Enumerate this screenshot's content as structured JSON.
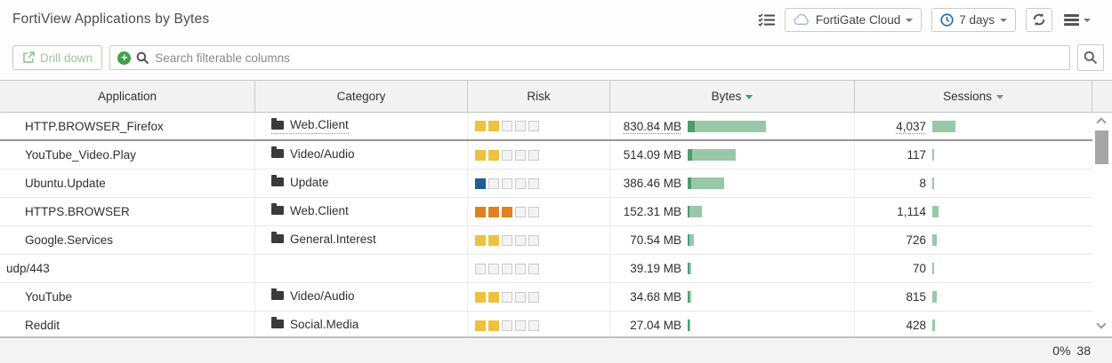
{
  "header": {
    "title": "FortiView Applications by Bytes",
    "device_dropdown": "FortiGate Cloud",
    "time_dropdown": "7 days"
  },
  "toolbar": {
    "drill_down_label": "Drill down",
    "search_placeholder": "Search filterable columns"
  },
  "table": {
    "columns": [
      "Application",
      "Category",
      "Risk",
      "Bytes",
      "Sessions"
    ],
    "sort_column": "Bytes",
    "sort_direction": "desc",
    "risk_level_colors": {
      "1": "#1e5d96",
      "2": "#f0c13c",
      "3": "#e0811f"
    },
    "rows": [
      {
        "application": "HTTP.BROWSER_Firefox",
        "category": "Web.Client",
        "risk": 2,
        "bytes": "830.84 MB",
        "bytes_mb": 830.84,
        "sessions": "4,037",
        "sessions_count": 4037,
        "selected": true
      },
      {
        "application": "YouTube_Video.Play",
        "category": "Video/Audio",
        "risk": 2,
        "bytes": "514.09 MB",
        "bytes_mb": 514.09,
        "sessions": "117",
        "sessions_count": 117
      },
      {
        "application": "Ubuntu.Update",
        "category": "Update",
        "risk": 1,
        "bytes": "386.46 MB",
        "bytes_mb": 386.46,
        "sessions": "8",
        "sessions_count": 8
      },
      {
        "application": "HTTPS.BROWSER",
        "category": "Web.Client",
        "risk": 3,
        "bytes": "152.31 MB",
        "bytes_mb": 152.31,
        "sessions": "1,114",
        "sessions_count": 1114
      },
      {
        "application": "Google.Services",
        "category": "General.Interest",
        "risk": 2,
        "bytes": "70.54 MB",
        "bytes_mb": 70.54,
        "sessions": "726",
        "sessions_count": 726
      },
      {
        "application": "udp/443",
        "category": "",
        "risk": 0,
        "bytes": "39.19 MB",
        "bytes_mb": 39.19,
        "sessions": "70",
        "sessions_count": 70,
        "raw": true
      },
      {
        "application": "YouTube",
        "category": "Video/Audio",
        "risk": 2,
        "bytes": "34.68 MB",
        "bytes_mb": 34.68,
        "sessions": "815",
        "sessions_count": 815
      },
      {
        "application": "Reddit",
        "category": "Social.Media",
        "risk": 2,
        "bytes": "27.04 MB",
        "bytes_mb": 27.04,
        "sessions": "428",
        "sessions_count": 428
      }
    ]
  },
  "statusbar": {
    "progress": "0%",
    "count": "38"
  },
  "colors": {
    "bar_light": "#97c9a8",
    "bar_dark": "#4e9b6d",
    "accent_green": "#3fa247",
    "sort_active_green": "#3f9e63",
    "risk_empty": "#f3f3f3"
  }
}
